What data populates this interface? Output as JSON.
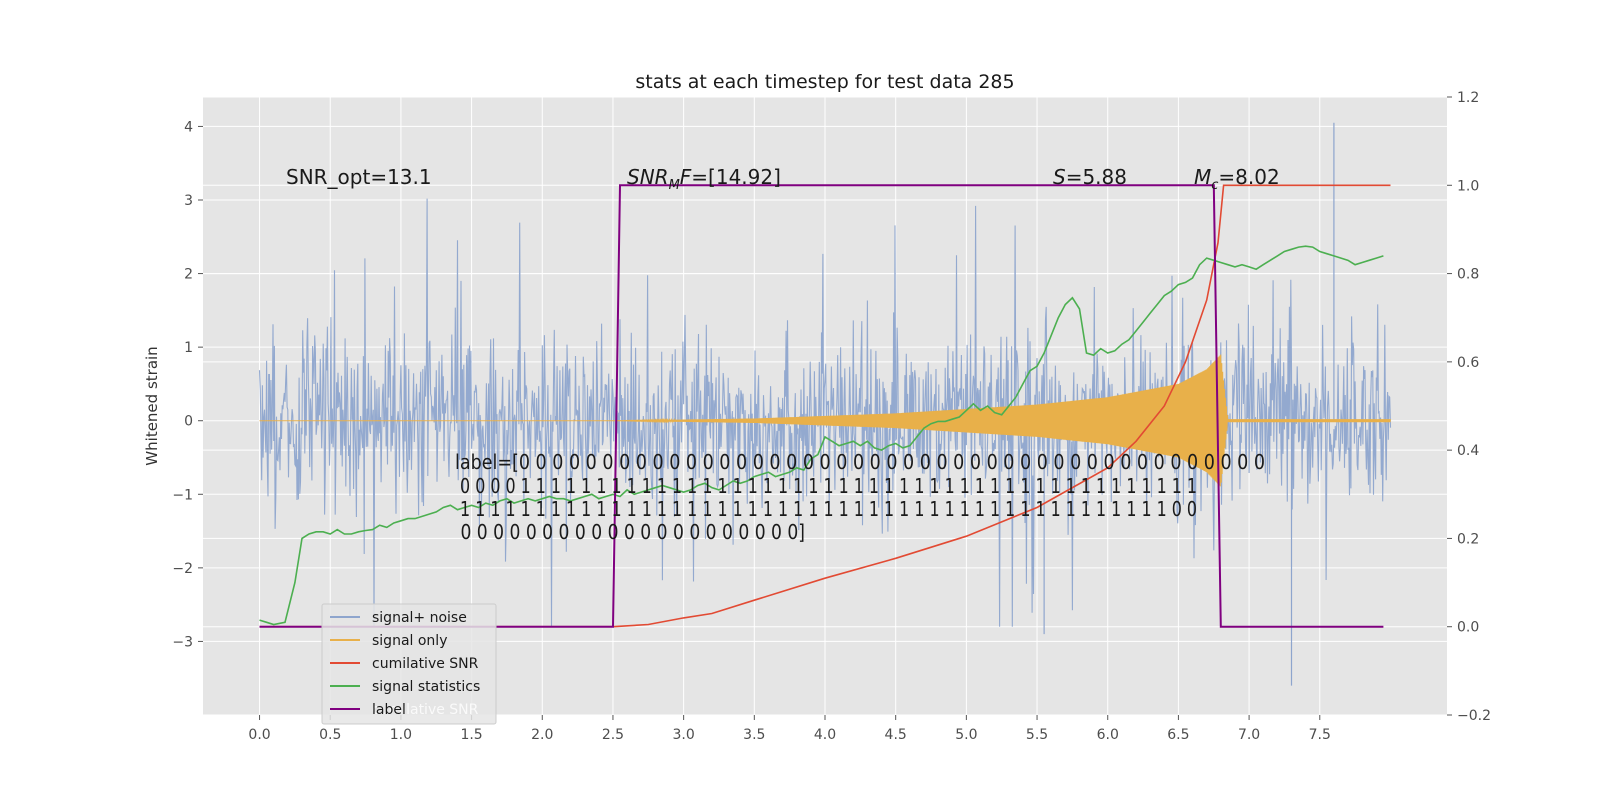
{
  "chart_data": {
    "type": "line",
    "title": "stats at each timestep for test data 285",
    "ylabel": "Whitened strain",
    "xlabel": "",
    "xlim": [
      -0.4,
      8.4
    ],
    "ylim_left": [
      -4.0,
      4.4
    ],
    "ylim_right": [
      -0.2,
      1.2
    ],
    "x_ticks": [
      "0.0",
      "0.5",
      "1.0",
      "1.5",
      "2.0",
      "2.5",
      "3.0",
      "3.5",
      "4.0",
      "4.5",
      "5.0",
      "5.5",
      "6.0",
      "6.5",
      "7.0",
      "7.5"
    ],
    "y_ticks_left": [
      "−3",
      "−2",
      "−1",
      "0",
      "1",
      "2",
      "3",
      "4"
    ],
    "y_ticks_right": [
      "−0.2",
      "0.0",
      "0.2",
      "0.4",
      "0.6",
      "0.8",
      "1.0",
      "1.2"
    ],
    "grid": true,
    "legend_position": "lower-left",
    "colors": {
      "signal_noise": "#8ea5cd",
      "signal_only": "#e8b04a",
      "cumulative_snr": "#e24a33",
      "signal_statistics": "#4caf50",
      "label": "#800080",
      "plot_bg": "#e5e5e5",
      "grid": "#ffffff"
    },
    "annotations": [
      {
        "text": "SNR_opt=13.1"
      },
      {
        "text_italic": "SNR",
        "sub": "M",
        "text_italic2": "F",
        "text_rest": "=[14.92]"
      },
      {
        "text_italic": "S",
        "text_rest": "=5.88"
      },
      {
        "text_italic": "M",
        "sub": "c",
        "text_rest": "=8.02"
      }
    ],
    "label_array_text": [
      "label=[0 0 0 0 0 0 0 0 0 0 0 0 0 0 0 0 0 0 0 0 0 0 0 0 0 0 0 0 0 0 0 0 0 0 0 0 0 0 0 0 0 0 0 0 0",
      " 0 0 0 0 1 1 1 1 1 1 1 1 1 1 1 1 1 1 1 1 1 1 1 1 1 1 1 1 1 1 1 1 1 1 1 1 1 1 1 1 1 1 1 1 1 1 1 1 1",
      " 1 1 1 1 1 1 1 1 1 1 1 1 1 1 1 1 1 1 1 1 1 1 1 1 1 1 1 1 1 1 1 1 1 1 1 1 1 1 1 1 1 1 1 1 1 1 1 0 0",
      " 0 0 0 0 0 0 0 0 0 0 0 0 0 0 0 0 0 0 0 0 0]"
    ],
    "series": [
      {
        "name": "signal+ noise",
        "kind": "noise",
        "x_range": [
          0.0,
          8.0
        ],
        "sigma": 0.55,
        "peak_values": [
          {
            "x": 7.6,
            "y": 4.05
          },
          {
            "x": 7.3,
            "y": -3.6
          },
          {
            "x": 5.55,
            "y": -2.9
          }
        ]
      },
      {
        "name": "signal only",
        "kind": "chirp",
        "x_range": [
          0.0,
          8.0
        ],
        "amplitude": {
          "x": [
            0.0,
            2.5,
            3.5,
            4.5,
            5.5,
            6.0,
            6.5,
            6.7,
            6.8,
            6.85,
            8.0
          ],
          "y": [
            0.0,
            0.0,
            0.03,
            0.1,
            0.22,
            0.32,
            0.5,
            0.7,
            0.9,
            0.02,
            0.02
          ]
        }
      },
      {
        "name": "cumilative SNR",
        "axis": "right",
        "x": [
          0.0,
          2.5,
          2.75,
          3.0,
          3.2,
          3.5,
          4.0,
          4.5,
          5.0,
          5.5,
          6.0,
          6.2,
          6.4,
          6.55,
          6.7,
          6.78,
          6.82,
          7.0,
          7.5,
          8.0
        ],
        "y": [
          0.0,
          0.0,
          0.005,
          0.02,
          0.03,
          0.06,
          0.11,
          0.155,
          0.205,
          0.27,
          0.36,
          0.42,
          0.5,
          0.6,
          0.74,
          0.87,
          1.0,
          1.0,
          1.0,
          1.0
        ]
      },
      {
        "name": "signal statistics",
        "axis": "right",
        "x": [
          0.0,
          0.05,
          0.1,
          0.18,
          0.25,
          0.3,
          0.35,
          0.4,
          0.45,
          0.5,
          0.55,
          0.6,
          0.65,
          0.7,
          0.75,
          0.8,
          0.85,
          0.9,
          0.95,
          1.0,
          1.05,
          1.1,
          1.15,
          1.2,
          1.25,
          1.3,
          1.35,
          1.4,
          1.45,
          1.5,
          1.55,
          1.6,
          1.65,
          1.7,
          1.75,
          1.8,
          1.85,
          1.9,
          1.95,
          2.0,
          2.05,
          2.1,
          2.15,
          2.2,
          2.25,
          2.3,
          2.35,
          2.4,
          2.45,
          2.5,
          2.55,
          2.6,
          2.65,
          2.7,
          2.75,
          2.8,
          2.85,
          2.9,
          2.95,
          3.0,
          3.05,
          3.1,
          3.15,
          3.2,
          3.25,
          3.3,
          3.35,
          3.4,
          3.45,
          3.5,
          3.55,
          3.6,
          3.65,
          3.7,
          3.75,
          3.8,
          3.85,
          3.9,
          3.95,
          4.0,
          4.05,
          4.1,
          4.15,
          4.2,
          4.25,
          4.3,
          4.35,
          4.4,
          4.45,
          4.5,
          4.55,
          4.6,
          4.65,
          4.7,
          4.75,
          4.8,
          4.85,
          4.9,
          4.95,
          5.0,
          5.05,
          5.1,
          5.15,
          5.2,
          5.25,
          5.3,
          5.35,
          5.4,
          5.45,
          5.5,
          5.55,
          5.6,
          5.65,
          5.7,
          5.75,
          5.8,
          5.85,
          5.9,
          5.95,
          6.0,
          6.05,
          6.1,
          6.15,
          6.2,
          6.25,
          6.3,
          6.35,
          6.4,
          6.45,
          6.5,
          6.55,
          6.6,
          6.65,
          6.7,
          6.75,
          6.8,
          6.85,
          6.9,
          6.95,
          7.0,
          7.05,
          7.1,
          7.15,
          7.2,
          7.25,
          7.3,
          7.35,
          7.4,
          7.45,
          7.5,
          7.55,
          7.6,
          7.65,
          7.7,
          7.75,
          7.8,
          7.85,
          7.9,
          7.95
        ],
        "y": [
          0.015,
          0.01,
          0.005,
          0.01,
          0.1,
          0.2,
          0.21,
          0.215,
          0.215,
          0.21,
          0.22,
          0.21,
          0.21,
          0.215,
          0.218,
          0.22,
          0.23,
          0.225,
          0.235,
          0.24,
          0.245,
          0.245,
          0.25,
          0.255,
          0.26,
          0.27,
          0.275,
          0.265,
          0.27,
          0.275,
          0.27,
          0.28,
          0.275,
          0.285,
          0.29,
          0.28,
          0.285,
          0.29,
          0.285,
          0.29,
          0.295,
          0.29,
          0.29,
          0.285,
          0.29,
          0.295,
          0.3,
          0.29,
          0.295,
          0.3,
          0.295,
          0.31,
          0.3,
          0.305,
          0.31,
          0.315,
          0.32,
          0.315,
          0.31,
          0.305,
          0.31,
          0.32,
          0.325,
          0.315,
          0.31,
          0.32,
          0.33,
          0.325,
          0.33,
          0.34,
          0.345,
          0.35,
          0.34,
          0.345,
          0.35,
          0.36,
          0.355,
          0.38,
          0.39,
          0.43,
          0.42,
          0.41,
          0.415,
          0.42,
          0.41,
          0.42,
          0.405,
          0.4,
          0.41,
          0.415,
          0.405,
          0.41,
          0.43,
          0.45,
          0.46,
          0.465,
          0.465,
          0.47,
          0.475,
          0.49,
          0.505,
          0.49,
          0.5,
          0.485,
          0.48,
          0.5,
          0.52,
          0.55,
          0.58,
          0.59,
          0.62,
          0.66,
          0.7,
          0.73,
          0.745,
          0.72,
          0.62,
          0.615,
          0.63,
          0.62,
          0.625,
          0.64,
          0.65,
          0.67,
          0.69,
          0.71,
          0.73,
          0.75,
          0.76,
          0.775,
          0.78,
          0.79,
          0.82,
          0.835,
          0.83,
          0.825,
          0.82,
          0.815,
          0.82,
          0.815,
          0.81,
          0.82,
          0.83,
          0.84,
          0.85,
          0.855,
          0.86,
          0.862,
          0.86,
          0.85,
          0.845,
          0.84,
          0.835,
          0.83,
          0.82,
          0.825,
          0.83,
          0.835,
          0.84
        ]
      },
      {
        "name": "label",
        "axis": "right",
        "x": [
          0.0,
          2.5,
          2.55,
          6.75,
          6.8,
          7.95
        ],
        "y": [
          0.0,
          0.0,
          1.0,
          1.0,
          0.0,
          0.0
        ]
      }
    ],
    "legend_ghost_text": "cumilative SNR"
  }
}
